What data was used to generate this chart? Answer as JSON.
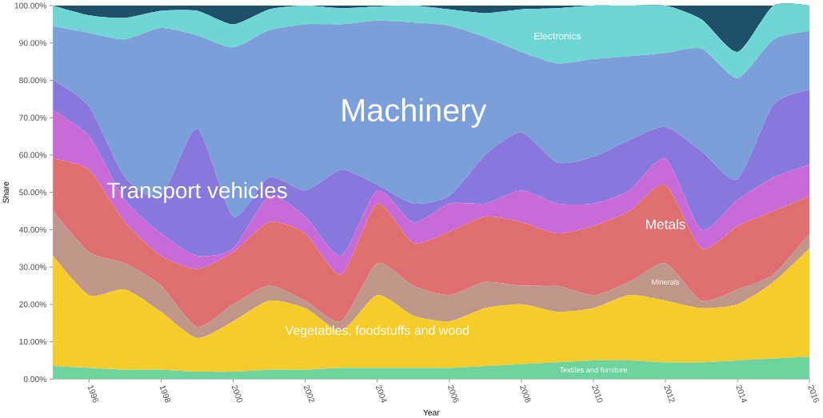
{
  "chart_data": {
    "type": "area",
    "stacked": true,
    "xlabel": "Year",
    "ylabel": "Share",
    "x": [
      1995,
      1996,
      1997,
      1998,
      1999,
      2000,
      2001,
      2002,
      2003,
      2004,
      2005,
      2006,
      2007,
      2008,
      2009,
      2010,
      2011,
      2012,
      2013,
      2014,
      2015,
      2016
    ],
    "xlim": [
      1995,
      2016
    ],
    "xticks": [
      1996,
      1998,
      2000,
      2002,
      2004,
      2006,
      2008,
      2010,
      2012,
      2014,
      2016
    ],
    "ylim": [
      0,
      100
    ],
    "yticks": [
      {
        "value": 0,
        "label": "0.00%"
      },
      {
        "value": 10,
        "label": "10.00%"
      },
      {
        "value": 20,
        "label": "20.00%"
      },
      {
        "value": 30,
        "label": "30.00%"
      },
      {
        "value": 40,
        "label": "40.00%"
      },
      {
        "value": 50,
        "label": "50.00%"
      },
      {
        "value": 60,
        "label": "60.00%"
      },
      {
        "value": 70,
        "label": "70.00%"
      },
      {
        "value": 80,
        "label": "80.00%"
      },
      {
        "value": 90,
        "label": "90.00%"
      },
      {
        "value": 100,
        "label": "100.00%"
      }
    ],
    "series": [
      {
        "name": "Textiles and furniture",
        "color": "#6fd3a0",
        "values": [
          3.5,
          3,
          2.5,
          2.5,
          2,
          2,
          2.5,
          2.5,
          3,
          3,
          3,
          3,
          3.5,
          4,
          4.5,
          5,
          5,
          4.5,
          4.5,
          5,
          5.5,
          6
        ]
      },
      {
        "name": "Vegetables, foodstuffs and wood",
        "color": "#f5cc2a",
        "values": [
          29.5,
          19.5,
          21.5,
          15.5,
          9,
          13.5,
          18.5,
          16.5,
          10,
          19.5,
          14,
          12.5,
          15.5,
          16,
          13.5,
          14,
          17.5,
          16.5,
          14.5,
          15,
          20.5,
          29
        ]
      },
      {
        "name": "Minerals",
        "color": "#c0968a",
        "values": [
          12,
          11.5,
          7,
          7,
          3,
          4.5,
          4,
          2,
          2.5,
          8.5,
          8,
          7,
          7,
          5,
          7,
          3.5,
          3.5,
          10,
          2,
          4,
          2,
          4
        ]
      },
      {
        "name": "Metals",
        "color": "#e07070",
        "values": [
          14,
          22,
          11,
          8,
          15.5,
          14,
          17,
          18,
          12.5,
          16,
          11.5,
          17,
          17.5,
          17,
          14,
          18.5,
          19,
          21,
          14,
          17,
          17,
          10
        ]
      },
      {
        "color": "#c86ad8",
        "values": [
          13,
          9,
          6,
          6,
          3.5,
          1,
          7,
          4.5,
          5,
          3.5,
          5.5,
          7.5,
          3.5,
          8.5,
          8,
          6,
          5.5,
          7,
          5,
          7,
          9,
          8.5
        ]
      },
      {
        "name": "Transport vehicles",
        "color": "#8878dc",
        "values": [
          8,
          8,
          6,
          10,
          34,
          8.5,
          5,
          7,
          23,
          1.5,
          5,
          2,
          13,
          15.5,
          11,
          12.5,
          13.5,
          8.5,
          21,
          5.5,
          19.5,
          20
        ]
      },
      {
        "name": "Machinery",
        "color": "#7b9fd8",
        "values": [
          14.5,
          19.7,
          37,
          45,
          25,
          45.3,
          39.4,
          44.5,
          39,
          44,
          48.5,
          45.6,
          31.5,
          21.6,
          26.5,
          26.2,
          22.4,
          19.8,
          27.5,
          27.1,
          17.4,
          15.7
        ]
      },
      {
        "name": "Electronics",
        "color": "#6fd6d3",
        "values": [
          5.5,
          4.7,
          5.7,
          4.6,
          6.6,
          6.2,
          5.6,
          5,
          4.3,
          3.8,
          4.5,
          4.4,
          6.5,
          11.4,
          14.8,
          14.3,
          13.6,
          12.7,
          7.8,
          7,
          9.1,
          6.8
        ]
      },
      {
        "color": "#1e4f6b",
        "values": [
          0,
          2.6,
          3.3,
          1.4,
          1.4,
          5,
          1,
          0,
          0.7,
          0.2,
          0,
          1,
          2,
          1,
          0.7,
          0,
          0,
          0,
          3.7,
          12.4,
          0,
          0
        ]
      }
    ]
  }
}
